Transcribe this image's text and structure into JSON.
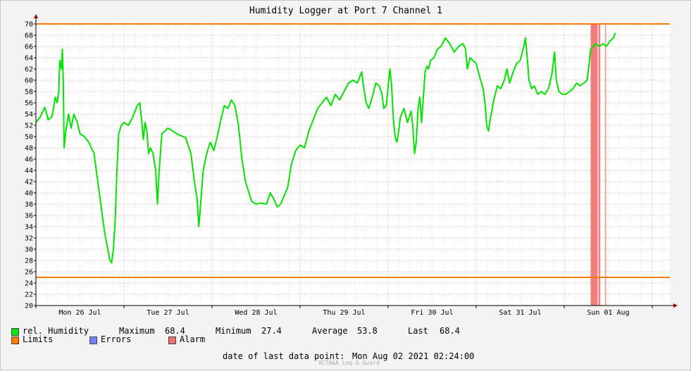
{
  "chart_data": {
    "type": "line",
    "title": "Humidity Logger at Port 7 Channel 1",
    "ylim": [
      20,
      70
    ],
    "yticks": [
      20,
      22,
      24,
      26,
      28,
      30,
      32,
      34,
      36,
      38,
      40,
      42,
      44,
      46,
      48,
      50,
      52,
      54,
      56,
      58,
      60,
      62,
      64,
      66,
      68,
      70
    ],
    "xlim_days": [
      0,
      7.2
    ],
    "xtick_labels": [
      "Mon 26 Jul",
      "Tue 27 Jul",
      "Wed 28 Jul",
      "Thu 29 Jul",
      "Fri 30 Jul",
      "Sat 31 Jul",
      "Sun 01 Aug"
    ],
    "limits": [
      25,
      70
    ],
    "series": [
      {
        "name": "rel. Humidity",
        "color": "#00e600",
        "points": [
          [
            0.0,
            52.5
          ],
          [
            0.05,
            53.5
          ],
          [
            0.1,
            55.2
          ],
          [
            0.14,
            53.0
          ],
          [
            0.18,
            53.5
          ],
          [
            0.2,
            55.0
          ],
          [
            0.22,
            57.0
          ],
          [
            0.24,
            56.0
          ],
          [
            0.26,
            58.0
          ],
          [
            0.27,
            63.5
          ],
          [
            0.29,
            62.0
          ],
          [
            0.3,
            65.5
          ],
          [
            0.31,
            60.0
          ],
          [
            0.32,
            48.0
          ],
          [
            0.34,
            51.0
          ],
          [
            0.37,
            54.0
          ],
          [
            0.4,
            51.5
          ],
          [
            0.43,
            54.0
          ],
          [
            0.47,
            52.5
          ],
          [
            0.5,
            50.5
          ],
          [
            0.55,
            50.0
          ],
          [
            0.6,
            49.0
          ],
          [
            0.66,
            47.0
          ],
          [
            0.72,
            40.0
          ],
          [
            0.78,
            33.0
          ],
          [
            0.81,
            30.5
          ],
          [
            0.84,
            28.0
          ],
          [
            0.86,
            27.6
          ],
          [
            0.88,
            30.0
          ],
          [
            0.9,
            35.0
          ],
          [
            0.92,
            44.0
          ],
          [
            0.94,
            50.5
          ],
          [
            0.97,
            52.0
          ],
          [
            1.0,
            52.5
          ],
          [
            1.05,
            52.0
          ],
          [
            1.1,
            53.5
          ],
          [
            1.15,
            55.5
          ],
          [
            1.18,
            56.0
          ],
          [
            1.2,
            53.0
          ],
          [
            1.22,
            49.5
          ],
          [
            1.24,
            52.5
          ],
          [
            1.26,
            51.0
          ],
          [
            1.28,
            47.0
          ],
          [
            1.3,
            48.0
          ],
          [
            1.33,
            47.0
          ],
          [
            1.36,
            44.0
          ],
          [
            1.38,
            38.0
          ],
          [
            1.4,
            44.0
          ],
          [
            1.43,
            50.5
          ],
          [
            1.5,
            51.5
          ],
          [
            1.55,
            51.0
          ],
          [
            1.6,
            50.5
          ],
          [
            1.7,
            49.8
          ],
          [
            1.76,
            47.0
          ],
          [
            1.8,
            42.0
          ],
          [
            1.83,
            39.0
          ],
          [
            1.85,
            34.0
          ],
          [
            1.87,
            38.0
          ],
          [
            1.9,
            44.0
          ],
          [
            1.94,
            47.0
          ],
          [
            1.98,
            49.0
          ],
          [
            2.02,
            47.5
          ],
          [
            2.06,
            50.0
          ],
          [
            2.1,
            53.0
          ],
          [
            2.14,
            55.5
          ],
          [
            2.18,
            55.0
          ],
          [
            2.22,
            56.5
          ],
          [
            2.26,
            55.5
          ],
          [
            2.3,
            52.0
          ],
          [
            2.34,
            46.0
          ],
          [
            2.38,
            42.0
          ],
          [
            2.42,
            40.0
          ],
          [
            2.45,
            38.5
          ],
          [
            2.5,
            38.0
          ],
          [
            2.55,
            38.2
          ],
          [
            2.62,
            38.0
          ],
          [
            2.66,
            40.0
          ],
          [
            2.7,
            39.0
          ],
          [
            2.74,
            37.5
          ],
          [
            2.78,
            38.0
          ],
          [
            2.82,
            39.5
          ],
          [
            2.86,
            41.0
          ],
          [
            2.9,
            45.0
          ],
          [
            2.95,
            47.5
          ],
          [
            3.0,
            48.5
          ],
          [
            3.05,
            48.0
          ],
          [
            3.1,
            51.0
          ],
          [
            3.15,
            53.0
          ],
          [
            3.2,
            55.0
          ],
          [
            3.25,
            56.0
          ],
          [
            3.3,
            57.0
          ],
          [
            3.35,
            55.5
          ],
          [
            3.4,
            57.5
          ],
          [
            3.45,
            56.5
          ],
          [
            3.5,
            58.0
          ],
          [
            3.55,
            59.5
          ],
          [
            3.6,
            60.0
          ],
          [
            3.65,
            59.5
          ],
          [
            3.7,
            61.5
          ],
          [
            3.72,
            59.0
          ],
          [
            3.75,
            56.0
          ],
          [
            3.78,
            55.0
          ],
          [
            3.82,
            57.0
          ],
          [
            3.86,
            59.5
          ],
          [
            3.9,
            59.0
          ],
          [
            3.93,
            57.5
          ],
          [
            3.95,
            55.0
          ],
          [
            3.98,
            55.5
          ],
          [
            4.0,
            59.0
          ],
          [
            4.02,
            62.0
          ],
          [
            4.04,
            59.0
          ],
          [
            4.06,
            53.0
          ],
          [
            4.08,
            50.0
          ],
          [
            4.1,
            49.0
          ],
          [
            4.12,
            51.0
          ],
          [
            4.14,
            53.5
          ],
          [
            4.18,
            55.0
          ],
          [
            4.22,
            52.5
          ],
          [
            4.26,
            54.5
          ],
          [
            4.28,
            52.0
          ],
          [
            4.3,
            47.0
          ],
          [
            4.32,
            49.0
          ],
          [
            4.34,
            55.0
          ],
          [
            4.36,
            57.0
          ],
          [
            4.38,
            52.5
          ],
          [
            4.4,
            57.0
          ],
          [
            4.42,
            61.5
          ],
          [
            4.44,
            62.5
          ],
          [
            4.46,
            62.0
          ],
          [
            4.48,
            63.5
          ],
          [
            4.52,
            64.0
          ],
          [
            4.56,
            65.5
          ],
          [
            4.6,
            66.0
          ],
          [
            4.65,
            67.5
          ],
          [
            4.7,
            66.5
          ],
          [
            4.75,
            65.0
          ],
          [
            4.8,
            66.0
          ],
          [
            4.85,
            66.5
          ],
          [
            4.88,
            65.5
          ],
          [
            4.9,
            62.0
          ],
          [
            4.93,
            64.0
          ],
          [
            4.96,
            63.5
          ],
          [
            5.0,
            63.0
          ],
          [
            5.05,
            60.0
          ],
          [
            5.08,
            58.5
          ],
          [
            5.1,
            56.0
          ],
          [
            5.12,
            52.0
          ],
          [
            5.14,
            51.0
          ],
          [
            5.16,
            53.0
          ],
          [
            5.2,
            56.5
          ],
          [
            5.24,
            59.0
          ],
          [
            5.28,
            58.5
          ],
          [
            5.32,
            60.0
          ],
          [
            5.35,
            62.0
          ],
          [
            5.38,
            59.5
          ],
          [
            5.42,
            61.5
          ],
          [
            5.46,
            63.0
          ],
          [
            5.5,
            63.5
          ],
          [
            5.54,
            66.0
          ],
          [
            5.56,
            67.5
          ],
          [
            5.58,
            64.0
          ],
          [
            5.6,
            60.0
          ],
          [
            5.63,
            58.5
          ],
          [
            5.66,
            59.0
          ],
          [
            5.7,
            57.5
          ],
          [
            5.74,
            58.0
          ],
          [
            5.78,
            57.5
          ],
          [
            5.82,
            58.5
          ],
          [
            5.86,
            61.0
          ],
          [
            5.89,
            65.0
          ],
          [
            5.91,
            60.0
          ],
          [
            5.94,
            58.0
          ],
          [
            5.98,
            57.5
          ],
          [
            6.02,
            57.5
          ],
          [
            6.06,
            58.0
          ],
          [
            6.1,
            58.5
          ],
          [
            6.14,
            59.5
          ],
          [
            6.18,
            59.0
          ],
          [
            6.22,
            59.5
          ],
          [
            6.26,
            60.0
          ],
          [
            6.28,
            62.5
          ],
          [
            6.3,
            65.5
          ],
          [
            6.33,
            66.0
          ],
          [
            6.36,
            66.5
          ],
          [
            6.4,
            66.0
          ],
          [
            6.44,
            66.5
          ],
          [
            6.48,
            66.0
          ],
          [
            6.52,
            67.0
          ],
          [
            6.56,
            67.5
          ],
          [
            6.58,
            68.4
          ]
        ]
      }
    ],
    "alarm_spans": [
      [
        6.3,
        6.38
      ],
      [
        6.39,
        6.41
      ],
      [
        6.465,
        6.475
      ]
    ],
    "legend": {
      "series_label": "rel. Humidity",
      "maximum_label": "Maximum",
      "maximum_value": "68.4",
      "minimum_label": "Minimum",
      "minimum_value": "27.4",
      "average_label": "Average",
      "average_value": "53.8",
      "last_label": "Last",
      "last_value": "68.4",
      "limits_label": "Limits",
      "errors_label": "Errors",
      "alarm_label": "Alarm",
      "last_point_label": "date of last data point:",
      "last_point_value": "Mon Aug 02 2021 02:24:00"
    },
    "watermark": "OCTA&A Log & Guard",
    "colors": {
      "humidity": "#00e600",
      "limits": "#ff7a00",
      "errors": "#7080ff",
      "alarm": "#f07070"
    }
  }
}
